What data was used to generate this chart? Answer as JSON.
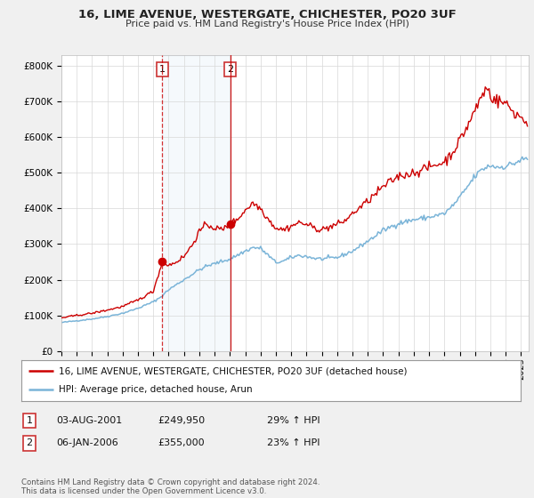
{
  "title": "16, LIME AVENUE, WESTERGATE, CHICHESTER, PO20 3UF",
  "subtitle": "Price paid vs. HM Land Registry's House Price Index (HPI)",
  "ylabel_ticks": [
    "£0",
    "£100K",
    "£200K",
    "£300K",
    "£400K",
    "£500K",
    "£600K",
    "£700K",
    "£800K"
  ],
  "ytick_values": [
    0,
    100000,
    200000,
    300000,
    400000,
    500000,
    600000,
    700000,
    800000
  ],
  "ylim": [
    0,
    830000
  ],
  "xlim_start": 1995.0,
  "xlim_end": 2025.5,
  "hpi_color": "#7ab4d8",
  "price_color": "#cc0000",
  "sale1_year": 2001.58,
  "sale1_price": 249950,
  "sale2_year": 2006.02,
  "sale2_price": 355000,
  "legend_label1": "16, LIME AVENUE, WESTERGATE, CHICHESTER, PO20 3UF (detached house)",
  "legend_label2": "HPI: Average price, detached house, Arun",
  "table_row1": [
    "1",
    "03-AUG-2001",
    "£249,950",
    "29% ↑ HPI"
  ],
  "table_row2": [
    "2",
    "06-JAN-2006",
    "£355,000",
    "23% ↑ HPI"
  ],
  "footer": "Contains HM Land Registry data © Crown copyright and database right 2024.\nThis data is licensed under the Open Government Licence v3.0.",
  "background_color": "#f0f0f0",
  "plot_bg_color": "#ffffff",
  "grid_color": "#d8d8d8"
}
